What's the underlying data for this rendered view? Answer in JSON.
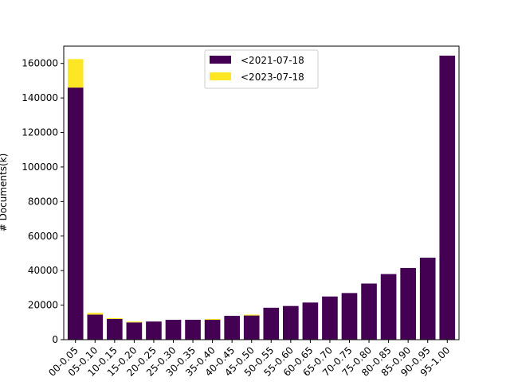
{
  "chart_data": {
    "type": "bar",
    "stacked": true,
    "title": "",
    "xlabel": "",
    "ylabel": "# Documents(k)",
    "ylim": [
      0,
      170000
    ],
    "yticks": [
      0,
      20000,
      40000,
      60000,
      80000,
      100000,
      120000,
      140000,
      160000
    ],
    "ytick_labels": [
      "0",
      "20000",
      "40000",
      "60000",
      "80000",
      "100000",
      "120000",
      "140000",
      "160000"
    ],
    "categories": [
      "0.00-0.05",
      "0.05-0.10",
      "0.10-0.15",
      "0.15-0.20",
      "0.20-0.25",
      "0.25-0.30",
      "0.30-0.35",
      "0.35-0.40",
      "0.40-0.45",
      "0.45-0.50",
      "0.50-0.55",
      "0.55-0.60",
      "0.60-0.65",
      "0.65-0.70",
      "0.70-0.75",
      "0.75-0.80",
      "0.80-0.85",
      "0.85-0.90",
      "0.90-0.95",
      "0.95-1.00"
    ],
    "tick_labels": [
      "00-0.05",
      "05-0.10",
      "10-0.15",
      "15-0.20",
      "20-0.25",
      "25-0.30",
      "30-0.35",
      "35-0.40",
      "40-0.45",
      "45-0.50",
      "50-0.55",
      "55-0.60",
      "60-0.65",
      "65-0.70",
      "70-0.75",
      "75-0.80",
      "80-0.85",
      "85-0.90",
      "90-0.95",
      "95-1.00"
    ],
    "series": [
      {
        "name": "<2021-07-18",
        "color": "#440154",
        "values": [
          146000,
          14500,
          12000,
          10000,
          10500,
          11500,
          11500,
          11500,
          13800,
          14000,
          18500,
          19500,
          21500,
          25000,
          27000,
          32500,
          38000,
          41500,
          47500,
          164500
        ]
      },
      {
        "name": "<2023-07-18",
        "color": "#fde725",
        "values": [
          16500,
          1000,
          500,
          500,
          0,
          0,
          0,
          500,
          0,
          500,
          0,
          0,
          0,
          0,
          0,
          0,
          0,
          0,
          0,
          0
        ]
      }
    ],
    "legend": {
      "placement": "upper center"
    },
    "grid": false
  }
}
